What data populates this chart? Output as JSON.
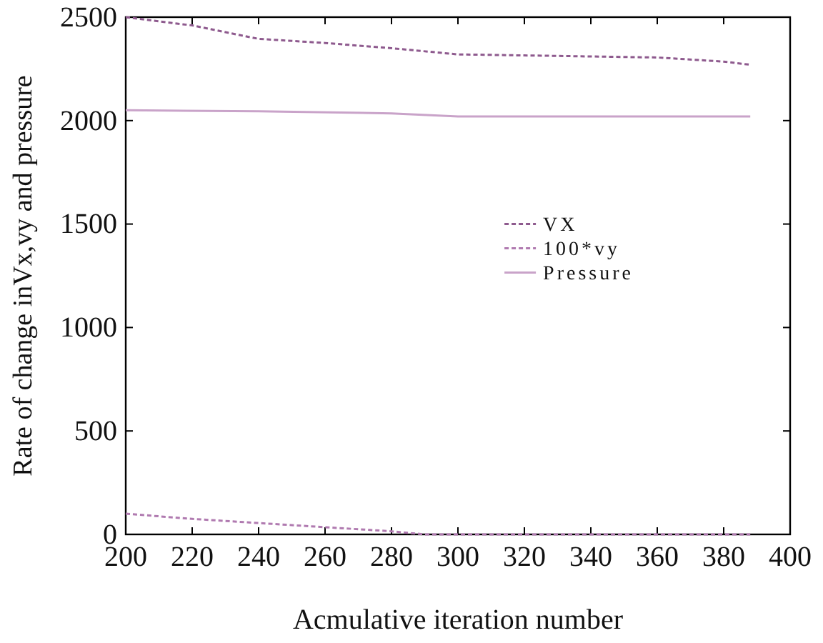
{
  "chart_data": {
    "type": "line",
    "xlabel": "Acmulative iteration number",
    "ylabel": "Rate of change inVx,vy and pressure",
    "xlim": [
      200,
      400
    ],
    "ylim": [
      0,
      2500
    ],
    "xticks": [
      200,
      220,
      240,
      260,
      280,
      300,
      320,
      340,
      360,
      380,
      400
    ],
    "yticks": [
      0,
      500,
      1000,
      1500,
      2000,
      2500
    ],
    "grid": false,
    "legend": "right",
    "marker": "none",
    "series": [
      {
        "name": "VX",
        "color": "#8e5a8e",
        "line_style": "dashed",
        "x": [
          200,
          220,
          240,
          260,
          280,
          300,
          320,
          340,
          360,
          380,
          388
        ],
        "values": [
          2500,
          2460,
          2395,
          2375,
          2350,
          2320,
          2315,
          2310,
          2305,
          2285,
          2270
        ]
      },
      {
        "name": "100*vy",
        "color": "#b07ab0",
        "line_style": "dashed",
        "x": [
          200,
          220,
          240,
          260,
          280,
          290,
          320,
          360,
          388
        ],
        "values": [
          100,
          75,
          55,
          35,
          15,
          0,
          0,
          0,
          0
        ]
      },
      {
        "name": "Pressure",
        "color": "#c9a3c9",
        "line_style": "solid",
        "x": [
          200,
          240,
          280,
          300,
          340,
          388
        ],
        "values": [
          2050,
          2045,
          2035,
          2020,
          2020,
          2020
        ]
      }
    ]
  }
}
